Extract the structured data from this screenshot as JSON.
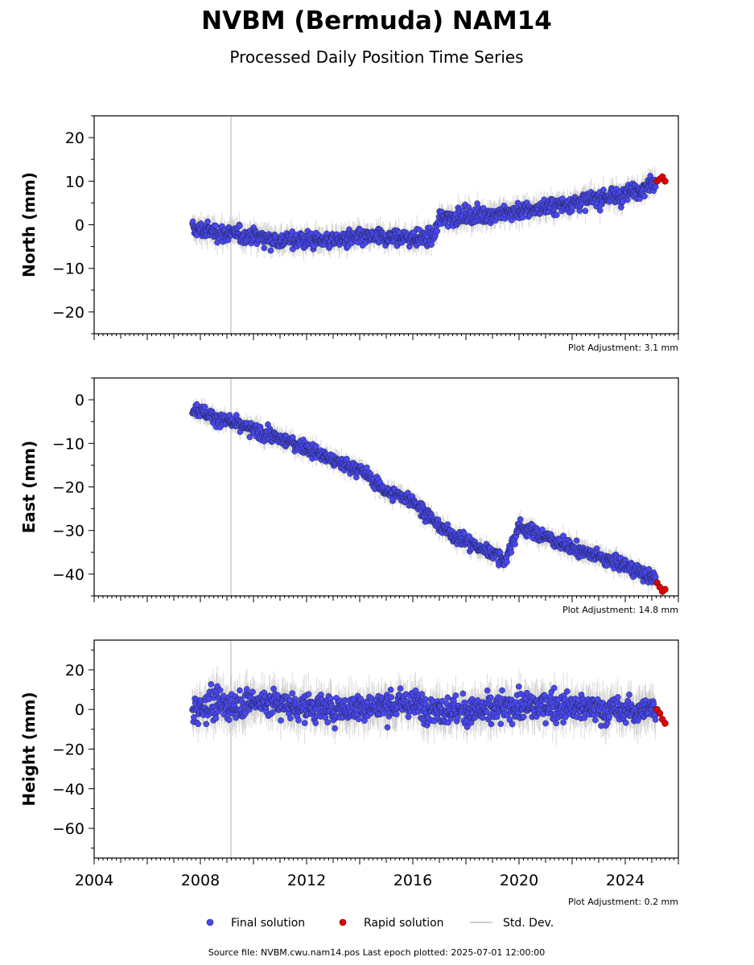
{
  "figure": {
    "title": "NVBM (Bermuda) NAM14",
    "subtitle": "Processed Daily Position Time Series",
    "footer": "Source file: NVBM.cwu.nam14.pos  Last epoch plotted: 2025-07-01 12:00:00"
  },
  "legend": {
    "final": "Final solution",
    "rapid": "Rapid solution",
    "std": "Std. Dev."
  },
  "colors": {
    "final": "#4848f0",
    "rapid": "#e00000",
    "std": "#bdbdbd",
    "marker_edge": "#222244"
  },
  "chart_data": [
    {
      "type": "scatter",
      "ylabel": "North (mm)",
      "adjustment": "Plot Adjustment: 3.1 mm",
      "xlim": [
        2004,
        2026
      ],
      "ylim": [
        -25,
        25
      ],
      "yticks": [
        -20,
        -10,
        0,
        10,
        20
      ],
      "series": [
        {
          "name": "Final solution",
          "x": [
            2007.8,
            2008.5,
            2009.0,
            2010.0,
            2011.0,
            2012.0,
            2013.0,
            2014.0,
            2015.0,
            2016.0,
            2016.8,
            2017.0,
            2018.0,
            2019.0,
            2020.0,
            2021.0,
            2022.0,
            2023.0,
            2024.0,
            2025.0
          ],
          "y": [
            -1,
            -1.5,
            -2,
            -2.5,
            -3.5,
            -3.5,
            -3.5,
            -3,
            -3,
            -3,
            -3,
            1.5,
            2,
            2.5,
            3,
            4,
            5,
            6,
            7,
            9.5
          ]
        },
        {
          "name": "Rapid solution",
          "x": [
            2025.2,
            2025.3,
            2025.4,
            2025.5
          ],
          "y": [
            10,
            10.5,
            11,
            10
          ]
        }
      ]
    },
    {
      "type": "scatter",
      "ylabel": "East (mm)",
      "adjustment": "Plot Adjustment: 14.8 mm",
      "xlim": [
        2004,
        2026
      ],
      "ylim": [
        -45,
        5
      ],
      "yticks": [
        -40,
        -30,
        -20,
        -10,
        0
      ],
      "series": [
        {
          "name": "Final solution",
          "x": [
            2007.8,
            2008.5,
            2009.0,
            2010.0,
            2011.0,
            2012.0,
            2013.0,
            2014.0,
            2015.0,
            2016.0,
            2016.8,
            2017.5,
            2018.5,
            2019.0,
            2019.5,
            2020.0,
            2021.0,
            2022.0,
            2023.0,
            2024.0,
            2025.0
          ],
          "y": [
            -2,
            -4,
            -5,
            -7,
            -9,
            -11,
            -14,
            -16,
            -21,
            -23,
            -28,
            -31,
            -34,
            -35,
            -37,
            -29,
            -31.5,
            -34,
            -36,
            -38,
            -41
          ]
        },
        {
          "name": "Rapid solution",
          "x": [
            2025.2,
            2025.3,
            2025.4,
            2025.5
          ],
          "y": [
            -42,
            -43,
            -44,
            -43.5
          ]
        }
      ]
    },
    {
      "type": "scatter",
      "ylabel": "Height (mm)",
      "adjustment": "Plot Adjustment: 0.2 mm",
      "xlim": [
        2004,
        2026
      ],
      "ylim": [
        -75,
        35
      ],
      "yticks": [
        -60,
        -40,
        -20,
        0,
        20
      ],
      "xticks": [
        2004,
        2008,
        2012,
        2016,
        2020,
        2024
      ],
      "series": [
        {
          "name": "Final solution",
          "x": [
            2007.8,
            2008.5,
            2009.0,
            2010.0,
            2011.0,
            2012.0,
            2013.0,
            2014.0,
            2015.0,
            2016.0,
            2017.0,
            2018.0,
            2019.0,
            2020.0,
            2021.0,
            2022.0,
            2023.0,
            2024.0,
            2025.0
          ],
          "y": [
            0,
            3,
            2,
            4,
            3,
            1,
            0,
            1,
            2,
            3,
            0,
            -1,
            0,
            1,
            2,
            1,
            0,
            -1,
            0
          ]
        },
        {
          "name": "Rapid solution",
          "x": [
            2025.2,
            2025.3,
            2025.4,
            2025.5
          ],
          "y": [
            0,
            -2,
            -5,
            -7
          ]
        }
      ]
    }
  ]
}
